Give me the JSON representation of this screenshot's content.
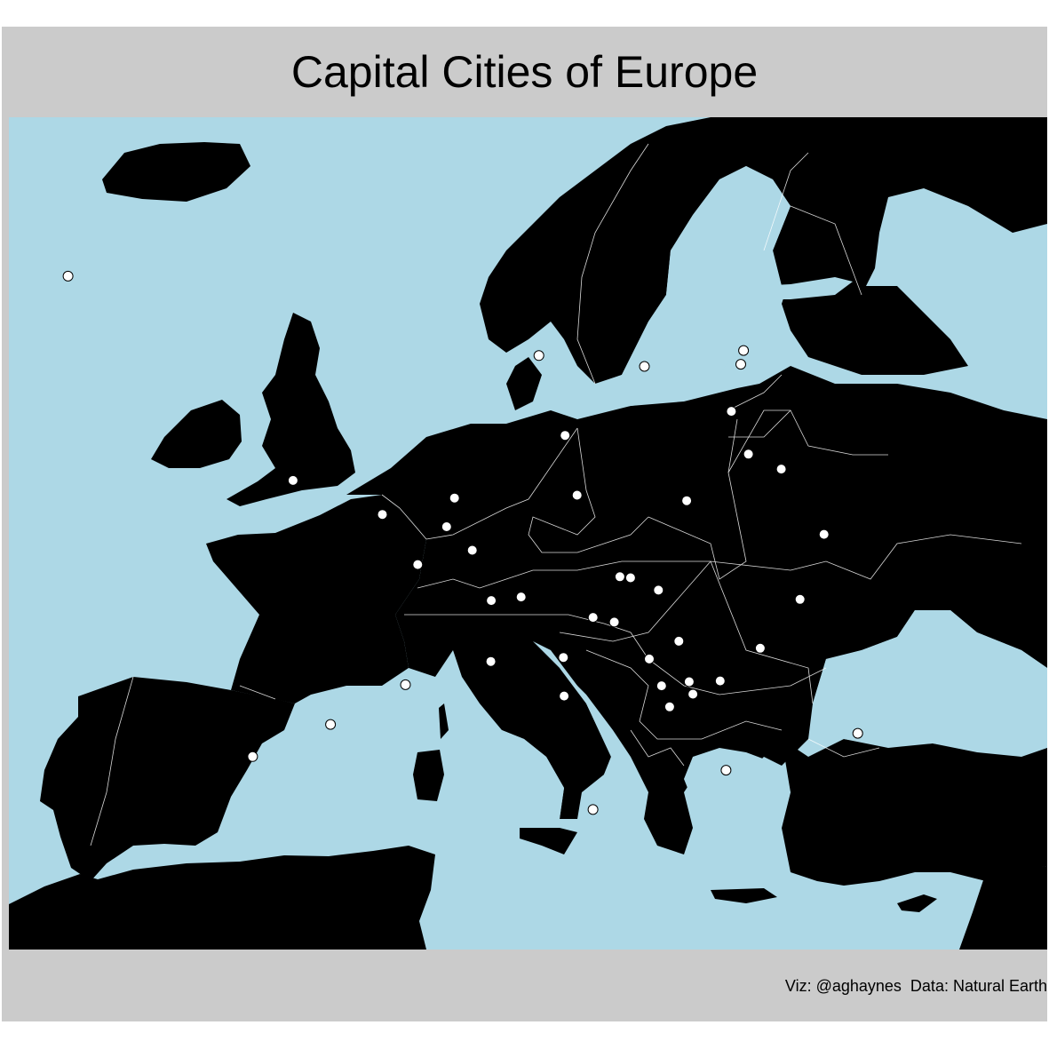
{
  "title": "Capital Cities of Europe",
  "caption": "Viz: @aghaynes  Data: Natural Earth",
  "colors": {
    "panel": "#cbcbcb",
    "sea": "#add8e6",
    "land": "#000000",
    "border": "#ffffff",
    "city": "#ffffff"
  },
  "map_data": {
    "region": "Europe",
    "projection": "equirectangular",
    "lon_range": [
      -26,
      46
    ],
    "lat_range": [
      28.5,
      72.5
    ],
    "cities": [
      {
        "lon": -21.9,
        "lat": 64.1
      },
      {
        "lon": -9.1,
        "lat": 38.7
      },
      {
        "lon": -3.7,
        "lat": 40.4
      },
      {
        "lon": 1.5,
        "lat": 42.5
      },
      {
        "lon": -6.3,
        "lat": 53.3
      },
      {
        "lon": -0.1,
        "lat": 51.5
      },
      {
        "lon": 2.35,
        "lat": 48.85
      },
      {
        "lon": 4.35,
        "lat": 50.85
      },
      {
        "lon": 4.9,
        "lat": 52.37
      },
      {
        "lon": 6.13,
        "lat": 49.61
      },
      {
        "lon": 7.42,
        "lat": 43.73
      },
      {
        "lon": 7.45,
        "lat": 46.95
      },
      {
        "lon": 9.52,
        "lat": 47.14
      },
      {
        "lon": 12.5,
        "lat": 41.9
      },
      {
        "lon": 12.45,
        "lat": 43.94
      },
      {
        "lon": 14.5,
        "lat": 35.9
      },
      {
        "lon": 10.75,
        "lat": 59.9
      },
      {
        "lon": 18.07,
        "lat": 59.33
      },
      {
        "lon": 12.57,
        "lat": 55.68
      },
      {
        "lon": 24.94,
        "lat": 60.17
      },
      {
        "lon": 24.75,
        "lat": 59.44
      },
      {
        "lon": 24.1,
        "lat": 56.95
      },
      {
        "lon": 25.28,
        "lat": 54.69
      },
      {
        "lon": 27.56,
        "lat": 53.9
      },
      {
        "lon": 13.4,
        "lat": 52.52
      },
      {
        "lon": 21.0,
        "lat": 52.23
      },
      {
        "lon": 30.52,
        "lat": 50.45
      },
      {
        "lon": 16.37,
        "lat": 48.21
      },
      {
        "lon": 17.11,
        "lat": 48.15
      },
      {
        "lon": 19.04,
        "lat": 47.5
      },
      {
        "lon": 28.86,
        "lat": 47.01
      },
      {
        "lon": 14.51,
        "lat": 46.06
      },
      {
        "lon": 15.98,
        "lat": 45.81
      },
      {
        "lon": 18.41,
        "lat": 43.86
      },
      {
        "lon": 20.46,
        "lat": 44.8
      },
      {
        "lon": 26.1,
        "lat": 44.43
      },
      {
        "lon": 23.32,
        "lat": 42.7
      },
      {
        "lon": 19.26,
        "lat": 42.44
      },
      {
        "lon": 21.17,
        "lat": 42.66
      },
      {
        "lon": 21.43,
        "lat": 42.0
      },
      {
        "lon": 19.82,
        "lat": 41.33
      },
      {
        "lon": 23.73,
        "lat": 37.98
      },
      {
        "lon": 32.86,
        "lat": 39.93
      }
    ]
  }
}
